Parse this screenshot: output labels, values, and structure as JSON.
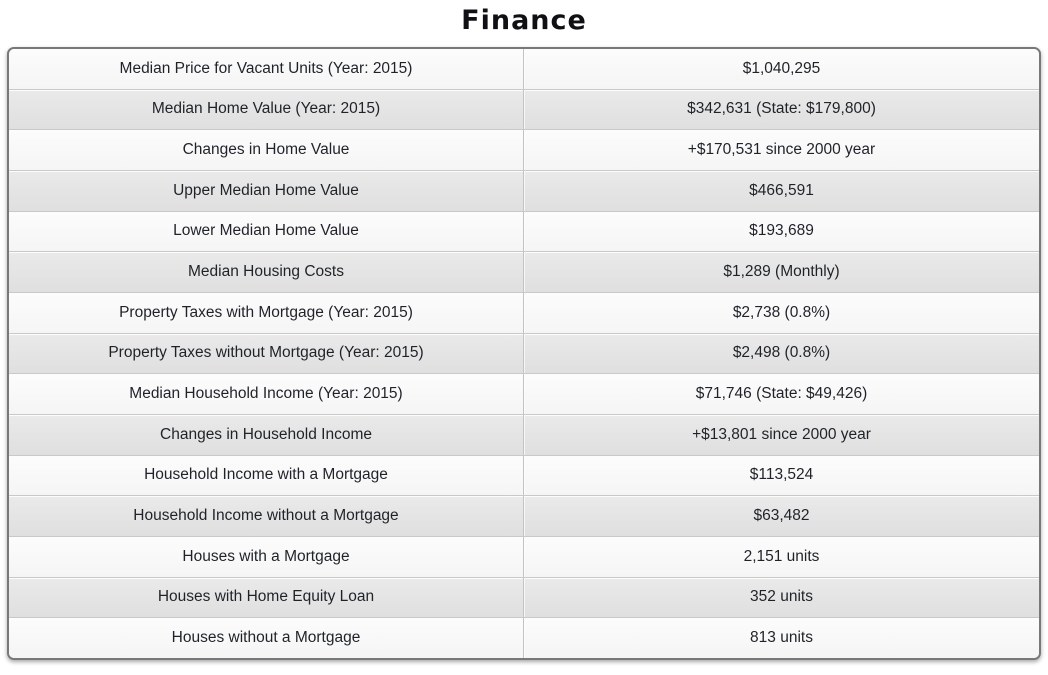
{
  "chart_data": {
    "type": "table",
    "title": "Finance",
    "legend": false,
    "rows": [
      {
        "label": "Median Price for Vacant Units (Year: 2015)",
        "value": "$1,040,295"
      },
      {
        "label": "Median Home Value (Year: 2015)",
        "value": "$342,631 (State: $179,800)"
      },
      {
        "label": "Changes in Home Value",
        "value": "+$170,531 since 2000 year"
      },
      {
        "label": "Upper Median Home Value",
        "value": "$466,591"
      },
      {
        "label": "Lower Median Home Value",
        "value": "$193,689"
      },
      {
        "label": "Median Housing Costs",
        "value": "$1,289 (Monthly)"
      },
      {
        "label": "Property Taxes with Mortgage (Year: 2015)",
        "value": "$2,738 (0.8%)"
      },
      {
        "label": "Property Taxes without Mortgage (Year: 2015)",
        "value": "$2,498 (0.8%)"
      },
      {
        "label": "Median Household Income (Year: 2015)",
        "value": "$71,746 (State: $49,426)"
      },
      {
        "label": "Changes in Household Income",
        "value": "+$13,801 since 2000 year"
      },
      {
        "label": "Household Income with a Mortgage",
        "value": "$113,524"
      },
      {
        "label": "Household Income without a Mortgage",
        "value": "$63,482"
      },
      {
        "label": "Houses with a Mortgage",
        "value": "2,151 units"
      },
      {
        "label": "Houses with Home Equity Loan",
        "value": "352 units"
      },
      {
        "label": "Houses without a Mortgage",
        "value": "813 units"
      }
    ]
  },
  "colors": {
    "row_light": "#fafafa",
    "row_alternate": "#e5e5e5",
    "table_border": "#787878",
    "text": "#1f2329"
  }
}
